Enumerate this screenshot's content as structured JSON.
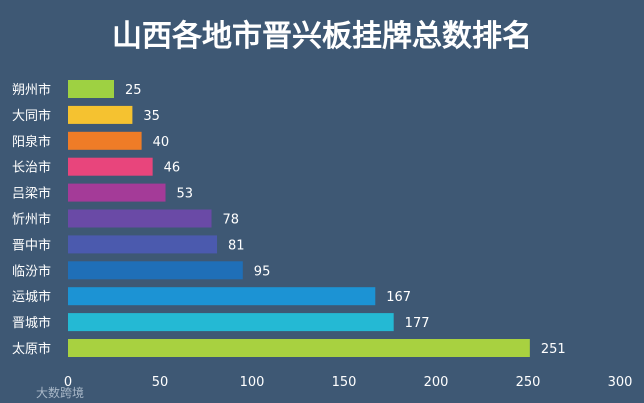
{
  "colors": {
    "background": "#3e5874",
    "text": "#ffffff",
    "watermark": "#a9b8c8"
  },
  "watermark": "大数跨境",
  "chart_data": {
    "type": "bar",
    "orientation": "horizontal",
    "title": "山西各地市晋兴板挂牌总数排名",
    "xlabel": "",
    "ylabel": "",
    "xlim": [
      0,
      300
    ],
    "xticks": [
      0,
      50,
      100,
      150,
      200,
      250,
      300
    ],
    "grid": false,
    "categories": [
      "朔州市",
      "大同市",
      "阳泉市",
      "长治市",
      "吕梁市",
      "忻州市",
      "晋中市",
      "临汾市",
      "运城市",
      "晋城市",
      "太原市"
    ],
    "values": [
      25,
      35,
      40,
      46,
      53,
      78,
      81,
      95,
      167,
      177,
      251
    ],
    "bar_colors": [
      "#9ed142",
      "#f5c230",
      "#ef7c27",
      "#e8457c",
      "#a43b98",
      "#6a4aa6",
      "#4b5aae",
      "#1f6fb8",
      "#1c93d4",
      "#24b9d4",
      "#a8d140"
    ]
  }
}
